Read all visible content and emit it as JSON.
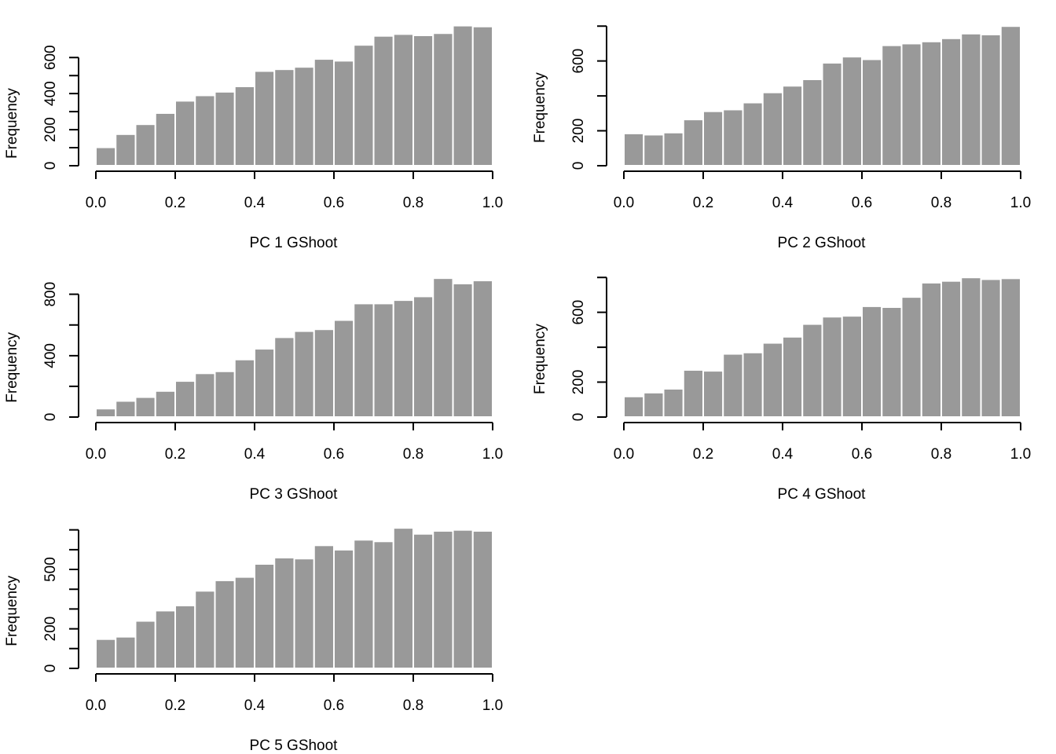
{
  "colors": {
    "bar_fill": "#999999",
    "bar_stroke": "#ffffff",
    "axis": "#000000",
    "background": "#ffffff"
  },
  "chart_data": [
    {
      "type": "bar",
      "title": "",
      "xlabel": "PC 1 GShoot",
      "ylabel": "Frequency",
      "bin_edges": [
        0.0,
        0.05,
        0.1,
        0.15,
        0.2,
        0.25,
        0.3,
        0.35,
        0.4,
        0.45,
        0.5,
        0.55,
        0.6,
        0.65,
        0.7,
        0.75,
        0.8,
        0.85,
        0.9,
        0.95,
        1.0
      ],
      "values": [
        102,
        175,
        230,
        292,
        360,
        390,
        410,
        440,
        525,
        535,
        548,
        592,
        582,
        670,
        720,
        730,
        723,
        735,
        777,
        772
      ],
      "xlim": [
        0.0,
        1.0
      ],
      "ylim": [
        0,
        800
      ],
      "xticks": [
        0.0,
        0.2,
        0.4,
        0.6,
        0.8,
        1.0
      ],
      "xtick_labels": [
        "0.0",
        "0.2",
        "0.4",
        "0.6",
        "0.8",
        "1.0"
      ],
      "yticks": [
        0,
        100,
        200,
        300,
        400,
        500,
        600
      ],
      "ytick_labels": [
        "0",
        "",
        "200",
        "",
        "400",
        "",
        "600"
      ],
      "grid": false
    },
    {
      "type": "bar",
      "title": "",
      "xlabel": "PC 2 GShoot",
      "ylabel": "Frequency",
      "bin_edges": [
        0.0,
        0.05,
        0.1,
        0.15,
        0.2,
        0.25,
        0.3,
        0.35,
        0.4,
        0.45,
        0.5,
        0.55,
        0.6,
        0.65,
        0.7,
        0.75,
        0.8,
        0.85,
        0.9,
        0.95,
        1.0
      ],
      "values": [
        185,
        178,
        190,
        265,
        312,
        322,
        362,
        420,
        458,
        495,
        590,
        625,
        610,
        690,
        700,
        712,
        730,
        757,
        752,
        800
      ],
      "xlim": [
        0.0,
        1.0
      ],
      "ylim": [
        0,
        800
      ],
      "xticks": [
        0.0,
        0.2,
        0.4,
        0.6,
        0.8,
        1.0
      ],
      "xtick_labels": [
        "0.0",
        "0.2",
        "0.4",
        "0.6",
        "0.8",
        "1.0"
      ],
      "yticks": [
        0,
        200,
        400,
        600,
        800
      ],
      "ytick_labels": [
        "0",
        "200",
        "",
        "600",
        ""
      ],
      "grid": false
    },
    {
      "type": "bar",
      "title": "",
      "xlabel": "PC 3 GShoot",
      "ylabel": "Frequency",
      "bin_edges": [
        0.0,
        0.05,
        0.1,
        0.15,
        0.2,
        0.25,
        0.3,
        0.35,
        0.4,
        0.45,
        0.5,
        0.55,
        0.6,
        0.65,
        0.7,
        0.75,
        0.8,
        0.85,
        0.9,
        0.95,
        1.0
      ],
      "values": [
        55,
        105,
        130,
        170,
        235,
        285,
        298,
        375,
        445,
        520,
        560,
        572,
        632,
        740,
        740,
        762,
        786,
        905,
        870,
        890
      ],
      "xlim": [
        0.0,
        1.0
      ],
      "ylim": [
        0,
        900
      ],
      "xticks": [
        0.0,
        0.2,
        0.4,
        0.6,
        0.8,
        1.0
      ],
      "xtick_labels": [
        "0.0",
        "0.2",
        "0.4",
        "0.6",
        "0.8",
        "1.0"
      ],
      "yticks": [
        0,
        200,
        400,
        600,
        800
      ],
      "ytick_labels": [
        "0",
        "",
        "400",
        "",
        "800"
      ],
      "grid": false
    },
    {
      "type": "bar",
      "title": "",
      "xlabel": "PC 4 GShoot",
      "ylabel": "Frequency",
      "bin_edges": [
        0.0,
        0.05,
        0.1,
        0.15,
        0.2,
        0.25,
        0.3,
        0.35,
        0.4,
        0.45,
        0.5,
        0.55,
        0.6,
        0.65,
        0.7,
        0.75,
        0.8,
        0.85,
        0.9,
        0.95,
        1.0
      ],
      "values": [
        118,
        140,
        162,
        270,
        265,
        362,
        370,
        425,
        460,
        533,
        575,
        580,
        635,
        630,
        688,
        770,
        780,
        800,
        790,
        795
      ],
      "xlim": [
        0.0,
        1.0
      ],
      "ylim": [
        0,
        800
      ],
      "xticks": [
        0.0,
        0.2,
        0.4,
        0.6,
        0.8,
        1.0
      ],
      "xtick_labels": [
        "0.0",
        "0.2",
        "0.4",
        "0.6",
        "0.8",
        "1.0"
      ],
      "yticks": [
        0,
        200,
        400,
        600,
        800
      ],
      "ytick_labels": [
        "0",
        "200",
        "",
        "600",
        ""
      ],
      "grid": false
    },
    {
      "type": "bar",
      "title": "",
      "xlabel": "PC 5 GShoot",
      "ylabel": "Frequency",
      "bin_edges": [
        0.0,
        0.05,
        0.1,
        0.15,
        0.2,
        0.25,
        0.3,
        0.35,
        0.4,
        0.45,
        0.5,
        0.55,
        0.6,
        0.65,
        0.7,
        0.75,
        0.8,
        0.85,
        0.9,
        0.95,
        1.0
      ],
      "values": [
        148,
        160,
        240,
        292,
        318,
        392,
        445,
        462,
        528,
        560,
        555,
        622,
        600,
        650,
        642,
        710,
        680,
        695,
        700,
        695
      ],
      "xlim": [
        0.0,
        1.0
      ],
      "ylim": [
        0,
        700
      ],
      "xticks": [
        0.0,
        0.2,
        0.4,
        0.6,
        0.8,
        1.0
      ],
      "xtick_labels": [
        "0.0",
        "0.2",
        "0.4",
        "0.6",
        "0.8",
        "1.0"
      ],
      "yticks": [
        0,
        100,
        200,
        300,
        400,
        500,
        600,
        700
      ],
      "ytick_labels": [
        "0",
        "",
        "200",
        "",
        "",
        "500",
        "",
        ""
      ],
      "grid": false
    }
  ]
}
